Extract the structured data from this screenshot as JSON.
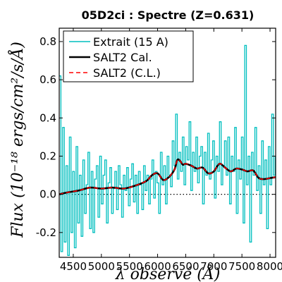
{
  "chart_data": {
    "type": "line",
    "title": "05D2ci : Spectre (Z=0.631)",
    "xlabel": "λ observé (Å)",
    "ylabel": "Flux (10⁻¹⁸ ergs/cm²/s/Å)",
    "xlim": [
      4250,
      8100
    ],
    "ylim": [
      -0.33,
      0.87
    ],
    "x_ticks": [
      4500,
      5000,
      5500,
      6000,
      6500,
      7000,
      7500,
      8000
    ],
    "x_tick_labels": [
      "4500",
      "5000",
      "5500",
      "6000",
      "6500",
      "7000",
      "7500",
      "8000"
    ],
    "y_ticks": [
      -0.2,
      0.0,
      0.2,
      0.4,
      0.6,
      0.8
    ],
    "y_tick_labels": [
      "-0.2",
      "0.0",
      "0.2",
      "0.4",
      "0.6",
      "0.8"
    ],
    "zero_line": true,
    "legend_position": "top-left",
    "series": [
      {
        "name": "Extrait (15 A)",
        "color": "#00bfbf",
        "style": "step",
        "x": [
          4250,
          4280,
          4310,
          4340,
          4370,
          4400,
          4430,
          4460,
          4490,
          4520,
          4550,
          4580,
          4610,
          4640,
          4670,
          4700,
          4730,
          4760,
          4790,
          4820,
          4850,
          4880,
          4910,
          4940,
          4970,
          5000,
          5030,
          5060,
          5090,
          5120,
          5150,
          5180,
          5210,
          5240,
          5270,
          5300,
          5330,
          5360,
          5390,
          5420,
          5450,
          5480,
          5510,
          5540,
          5570,
          5600,
          5630,
          5660,
          5690,
          5720,
          5750,
          5780,
          5810,
          5840,
          5870,
          5900,
          5930,
          5960,
          5990,
          6020,
          6050,
          6080,
          6110,
          6140,
          6170,
          6200,
          6230,
          6260,
          6290,
          6320,
          6350,
          6380,
          6410,
          6440,
          6470,
          6500,
          6530,
          6560,
          6590,
          6620,
          6650,
          6680,
          6710,
          6740,
          6770,
          6800,
          6830,
          6860,
          6890,
          6920,
          6950,
          6980,
          7010,
          7040,
          7070,
          7100,
          7130,
          7160,
          7190,
          7220,
          7250,
          7280,
          7310,
          7340,
          7370,
          7400,
          7430,
          7460,
          7490,
          7520,
          7550,
          7580,
          7610,
          7640,
          7670,
          7700,
          7730,
          7760,
          7790,
          7820,
          7850,
          7880,
          7910,
          7940,
          7970,
          8000,
          8030,
          8060,
          8090
        ],
        "values": [
          0.62,
          -0.3,
          0.35,
          -0.25,
          0.15,
          -0.32,
          0.3,
          -0.2,
          0.12,
          -0.28,
          0.25,
          -0.15,
          0.1,
          -0.22,
          0.18,
          -0.1,
          0.05,
          0.22,
          -0.18,
          0.12,
          -0.2,
          0.08,
          0.15,
          -0.12,
          0.2,
          -0.05,
          0.1,
          0.18,
          -0.15,
          0.06,
          0.14,
          -0.1,
          0.03,
          0.12,
          -0.08,
          0.15,
          0.05,
          -0.12,
          0.1,
          0.02,
          0.14,
          -0.06,
          0.08,
          0.16,
          -0.04,
          0.1,
          -0.1,
          0.12,
          0.05,
          -0.08,
          0.15,
          0.02,
          0.1,
          -0.05,
          0.08,
          0.18,
          -0.02,
          0.12,
          0.06,
          -0.1,
          0.22,
          0.05,
          0.15,
          -0.05,
          0.2,
          0.1,
          0.04,
          0.28,
          0.15,
          0.42,
          0.08,
          0.22,
          0.12,
          0.3,
          0.05,
          0.25,
          0.18,
          0.38,
          0.02,
          0.22,
          0.12,
          0.3,
          0.06,
          0.2,
          0.25,
          -0.05,
          0.22,
          0.1,
          0.32,
          0.08,
          0.18,
          0.28,
          -0.02,
          0.2,
          0.12,
          0.38,
          0.05,
          0.15,
          0.28,
          0.1,
          0.3,
          -0.05,
          0.2,
          0.12,
          0.35,
          -0.1,
          0.18,
          0.08,
          0.3,
          -0.15,
          0.78,
          0.05,
          0.2,
          -0.25,
          0.22,
          0.1,
          0.35,
          0.02,
          0.15,
          -0.1,
          0.28,
          0.05,
          0.18,
          -0.18,
          0.25,
          0.05,
          0.42,
          0.1,
          0.2
        ]
      },
      {
        "name": "SALT2 Cal.",
        "color": "#000000",
        "style": "line",
        "x": [
          4250,
          4400,
          4600,
          4800,
          5000,
          5200,
          5400,
          5600,
          5800,
          5900,
          6000,
          6100,
          6200,
          6300,
          6350,
          6400,
          6450,
          6500,
          6600,
          6700,
          6800,
          6900,
          7000,
          7100,
          7200,
          7300,
          7400,
          7500,
          7600,
          7700,
          7800,
          7900,
          8000,
          8100
        ],
        "values": [
          0.0,
          0.01,
          0.02,
          0.035,
          0.03,
          0.035,
          0.03,
          0.045,
          0.07,
          0.1,
          0.11,
          0.075,
          0.09,
          0.13,
          0.18,
          0.175,
          0.155,
          0.16,
          0.15,
          0.135,
          0.14,
          0.11,
          0.12,
          0.16,
          0.14,
          0.12,
          0.135,
          0.13,
          0.12,
          0.125,
          0.085,
          0.08,
          0.085,
          0.09
        ]
      },
      {
        "name": "SALT2 (C.L.)",
        "color": "#ff0000",
        "style": "dashed",
        "x": [
          4250,
          4400,
          4600,
          4800,
          5000,
          5200,
          5400,
          5600,
          5800,
          5900,
          6000,
          6100,
          6200,
          6300,
          6350,
          6400,
          6450,
          6500,
          6600,
          6700,
          6800,
          6900,
          7000,
          7100,
          7200,
          7300,
          7400,
          7500,
          7600,
          7700,
          7800,
          7900,
          8000,
          8100
        ],
        "values": [
          0.0,
          0.01,
          0.02,
          0.035,
          0.03,
          0.035,
          0.03,
          0.045,
          0.07,
          0.1,
          0.11,
          0.075,
          0.09,
          0.13,
          0.18,
          0.175,
          0.155,
          0.16,
          0.15,
          0.135,
          0.14,
          0.11,
          0.12,
          0.16,
          0.14,
          0.12,
          0.135,
          0.13,
          0.12,
          0.125,
          0.085,
          0.08,
          0.085,
          0.09
        ]
      }
    ]
  }
}
